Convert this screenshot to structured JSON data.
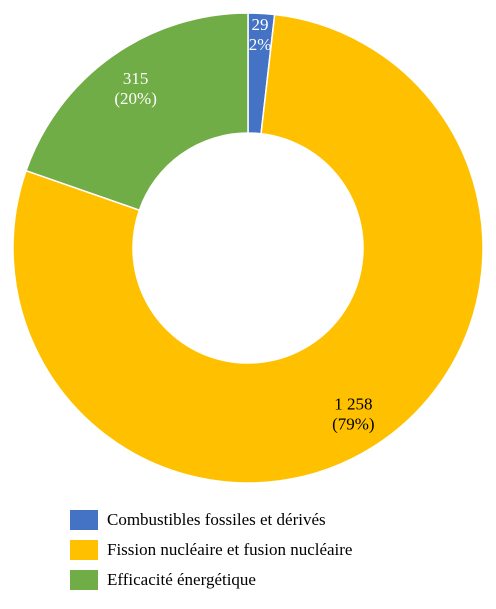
{
  "chart_data": {
    "type": "donut",
    "categories": [
      "Combustibles fossiles et dérivés",
      "Fission nucléaire et fusion nucléaire",
      "Efficacité énergétique"
    ],
    "values": [
      29,
      1258,
      315
    ],
    "value_labels": [
      "29",
      "1 258",
      "315"
    ],
    "percents": [
      2,
      79,
      20
    ],
    "percent_labels": [
      "(2%)",
      "(79%)",
      "(20%)"
    ],
    "colors": [
      "#4472c4",
      "#ffc000",
      "#70ad47"
    ],
    "legend": "bottom"
  }
}
